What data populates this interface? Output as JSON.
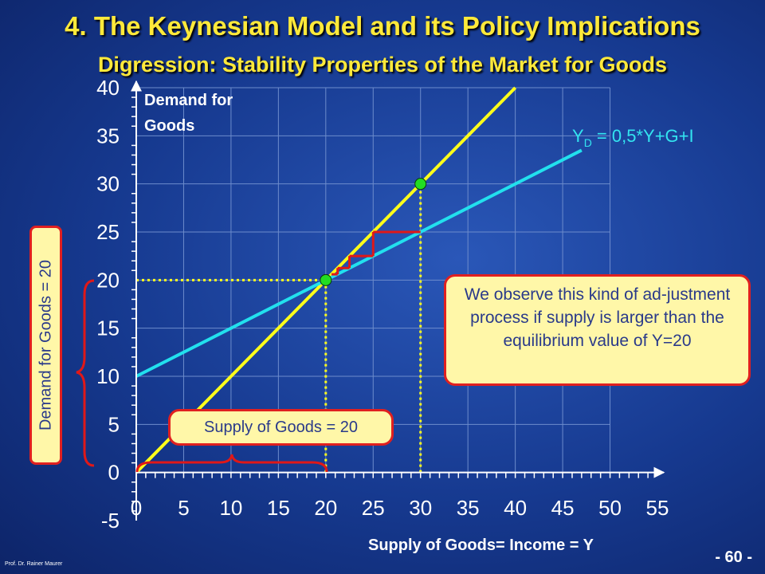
{
  "title": "4. The Keynesian Model and its Policy Implications",
  "subtitle": "Digression: Stability Properties of the Market for Goods",
  "footer_author": "Prof. Dr. Rainer Maurer",
  "page_number": "- 60 -",
  "callouts": {
    "adjustment": "We observe this kind of ad-justment process if supply is larger than the equilibrium value of Y=20",
    "supply": "Supply of Goods = 20",
    "demand": "Demand for Goods = 20"
  },
  "colors": {
    "yellow_line": "#ffff1a",
    "cyan_line": "#22e0ee",
    "marker_green": "#22dd22",
    "arrow_red": "#e01818",
    "axis": "#ffffff"
  },
  "chart_data": {
    "type": "line",
    "xlabel": "Supply of Goods= Income = Y",
    "ylabel": "Demand for Goods",
    "xlim": [
      0,
      55
    ],
    "ylim": [
      -5,
      40
    ],
    "x_ticks": [
      0,
      5,
      10,
      15,
      20,
      25,
      30,
      35,
      40,
      45,
      50,
      55
    ],
    "y_ticks": [
      -5,
      0,
      5,
      10,
      15,
      20,
      25,
      30,
      35,
      40
    ],
    "grid": true,
    "series": [
      {
        "x": [
          0,
          40
        ],
        "y": [
          0,
          40
        ],
        "color": "#ffff1a"
      },
      {
        "name": "Y",
        "name_subscript": "D",
        "name_rest": " = 0,5*Y+G+I",
        "x": [
          0,
          47
        ],
        "y": [
          10,
          33.5
        ],
        "color": "#22e0ee"
      }
    ],
    "points": [
      {
        "x": 20,
        "y": 20
      },
      {
        "x": 30,
        "y": 30
      }
    ],
    "reference_lines": [
      {
        "from": [
          0,
          20
        ],
        "to": [
          20,
          20
        ]
      },
      {
        "from": [
          20,
          0
        ],
        "to": [
          20,
          20
        ]
      },
      {
        "from": [
          30,
          0
        ],
        "to": [
          30,
          30
        ]
      }
    ],
    "adjustment_path": [
      [
        30,
        25
      ],
      [
        25,
        25
      ],
      [
        25,
        22.5
      ],
      [
        22.5,
        22.5
      ],
      [
        22.5,
        21.25
      ],
      [
        21.25,
        21.25
      ],
      [
        21.25,
        20.6
      ],
      [
        20.6,
        20.6
      ]
    ]
  }
}
